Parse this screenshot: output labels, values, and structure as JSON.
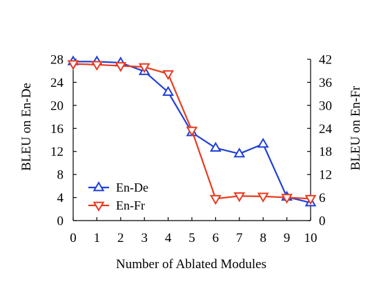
{
  "chart_data": {
    "type": "line",
    "title": "",
    "x": [
      0,
      1,
      2,
      3,
      4,
      5,
      6,
      7,
      8,
      9,
      10
    ],
    "xlabel": "Number of Ablated Modules",
    "ylabel_left": "BLEU on En-De",
    "ylabel_right": "BLEU on En-Fr",
    "xlim": [
      0,
      10
    ],
    "ylim_left": [
      0,
      28
    ],
    "ylim_right": [
      0,
      42
    ],
    "x_ticks": [
      "0",
      "1",
      "2",
      "3",
      "4",
      "5",
      "6",
      "7",
      "8",
      "9",
      "10"
    ],
    "y_ticks_left": [
      "0",
      "4",
      "8",
      "12",
      "16",
      "20",
      "24",
      "28"
    ],
    "y_ticks_right": [
      "0",
      "6",
      "12",
      "18",
      "24",
      "30",
      "36",
      "42"
    ],
    "grid": false,
    "legend_position": "bottom-left",
    "series": [
      {
        "name": "En-De",
        "axis": "left",
        "color": "#1f3fd6",
        "marker": "triangle-up",
        "values": [
          27.6,
          27.6,
          27.4,
          25.9,
          22.3,
          15.3,
          12.6,
          11.6,
          13.3,
          4.1,
          3.1
        ]
      },
      {
        "name": "En-Fr",
        "axis": "right",
        "color": "#e83a1e",
        "marker": "triangle-down",
        "values": [
          40.8,
          40.6,
          40.3,
          40.0,
          38.2,
          23.5,
          5.7,
          6.4,
          6.3,
          6.0,
          5.7
        ]
      }
    ]
  }
}
